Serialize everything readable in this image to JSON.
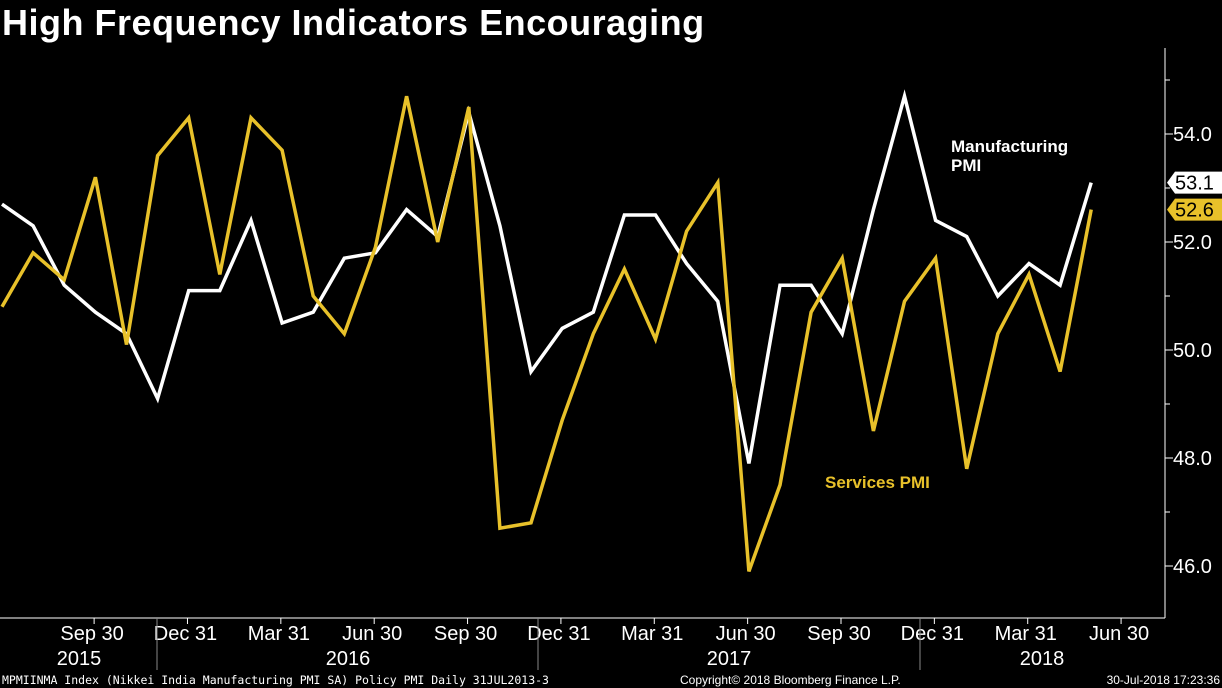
{
  "title": "High Frequency Indicators Encouraging",
  "chart_data": {
    "type": "line",
    "ylim": [
      45.0,
      55.5
    ],
    "yticks": [
      46.0,
      48.0,
      50.0,
      52.0,
      54.0
    ],
    "ytick_labels": [
      "46.0",
      "48.0",
      "50.0",
      "52.0",
      "54.0"
    ],
    "x_range": [
      "2015-07",
      "2018-07"
    ],
    "xtick_labels": [
      "Sep 30",
      "Dec 31",
      "Mar 31",
      "Jun 30",
      "Sep 30",
      "Dec 31",
      "Mar 31",
      "Jun 30",
      "Sep 30",
      "Dec 31",
      "Mar 31",
      "Jun 30"
    ],
    "year_labels": [
      "2015",
      "2016",
      "2017",
      "2018"
    ],
    "x": [
      "Jul 2015",
      "Aug 2015",
      "Sep 2015",
      "Oct 2015",
      "Nov 2015",
      "Dec 2015",
      "Jan 2016",
      "Feb 2016",
      "Mar 2016",
      "Apr 2016",
      "May 2016",
      "Jun 2016",
      "Jul 2016",
      "Aug 2016",
      "Sep 2016",
      "Oct 2016",
      "Nov 2016",
      "Dec 2016",
      "Jan 2017",
      "Feb 2017",
      "Mar 2017",
      "Apr 2017",
      "May 2017",
      "Jun 2017",
      "Jul 2017",
      "Aug 2017",
      "Sep 2017",
      "Oct 2017",
      "Nov 2017",
      "Dec 2017",
      "Jan 2018",
      "Feb 2018",
      "Mar 2018",
      "Apr 2018",
      "May 2018",
      "Jun 2018"
    ],
    "series": [
      {
        "name": "Manufacturing PMI",
        "label_lines": [
          "Manufacturing",
          "PMI"
        ],
        "color": "#ffffff",
        "last_value_label": "53.1",
        "values": [
          52.7,
          52.3,
          51.2,
          50.7,
          50.3,
          49.1,
          51.1,
          51.1,
          52.4,
          50.5,
          50.7,
          51.7,
          51.8,
          52.6,
          52.1,
          54.4,
          52.3,
          49.6,
          50.4,
          50.7,
          52.5,
          52.5,
          51.6,
          50.9,
          47.9,
          51.2,
          51.2,
          50.3,
          52.6,
          54.7,
          52.4,
          52.1,
          51.0,
          51.6,
          51.2,
          53.1
        ]
      },
      {
        "name": "Services PMI",
        "label_lines": [
          "Services PMI"
        ],
        "color": "#e8c12a",
        "last_value_label": "52.6",
        "values": [
          50.8,
          51.8,
          51.3,
          53.2,
          50.1,
          53.6,
          54.3,
          51.4,
          54.3,
          53.7,
          51.0,
          50.3,
          51.9,
          54.7,
          52.0,
          54.5,
          46.7,
          46.8,
          48.7,
          50.3,
          51.5,
          50.2,
          52.2,
          53.1,
          45.9,
          47.5,
          50.7,
          51.7,
          48.5,
          50.9,
          51.7,
          47.8,
          50.3,
          51.4,
          49.6,
          52.6
        ]
      }
    ]
  },
  "footer": {
    "left": "MPMIINMA Index (Nikkei India Manufacturing PMI SA) Policy PMI  Daily 31JUL2013-3",
    "center": "Copyright© 2018 Bloomberg Finance L.P.",
    "right": "30-Jul-2018 17:23:36"
  }
}
